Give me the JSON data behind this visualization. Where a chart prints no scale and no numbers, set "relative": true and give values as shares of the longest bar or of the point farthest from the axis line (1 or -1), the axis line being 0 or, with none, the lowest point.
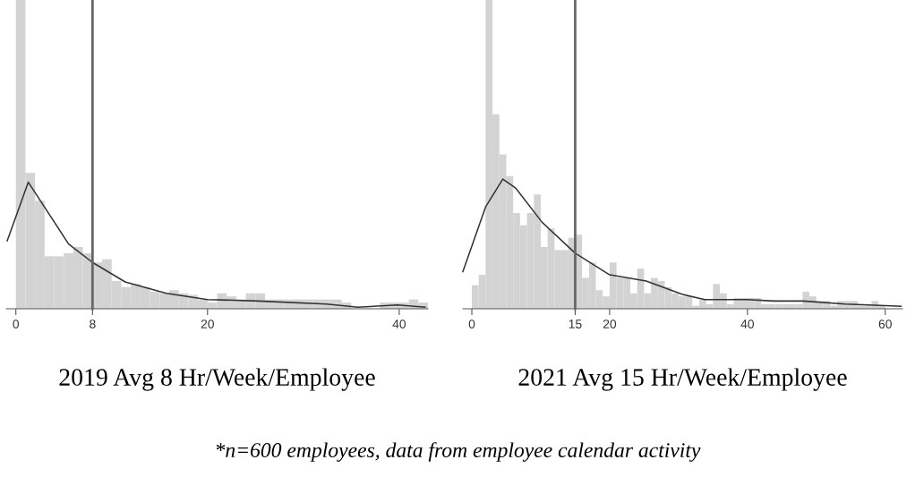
{
  "chart_data": [
    {
      "type": "histogram",
      "relative": true,
      "xlabel": "2019 Avg 8 Hr/Week/Employee",
      "color": "#d3d3d3",
      "bins": [
        0,
        1,
        2,
        3,
        4,
        5,
        6,
        7,
        8,
        9,
        10,
        11,
        12,
        13,
        14,
        15,
        16,
        17,
        18,
        19,
        20,
        21,
        22,
        23,
        24,
        25,
        26,
        27,
        28,
        29,
        30,
        31,
        32,
        33,
        34,
        35,
        36,
        37,
        38,
        39,
        40,
        41,
        42,
        43
      ],
      "values": [
        1,
        0.44,
        0.35,
        0.17,
        0.17,
        0.18,
        0.2,
        0.18,
        0.15,
        0.16,
        0.09,
        0.07,
        0.08,
        0.07,
        0.055,
        0.05,
        0.06,
        0.05,
        0.045,
        0.03,
        0.02,
        0.05,
        0.04,
        0.03,
        0.05,
        0.05,
        0.03,
        0.03,
        0.03,
        0.03,
        0.03,
        0.03,
        0.03,
        0.03,
        0.02,
        null,
        null,
        null,
        0.02,
        0.02,
        0.02,
        0.03,
        0.02
      ],
      "series": [
        {
          "type": "line",
          "color": "#333333",
          "x": [
            -0.9,
            1.3,
            5.5,
            8.0,
            11.4,
            15.7,
            20,
            25.3,
            32.4,
            35.7,
            39.8,
            42.7
          ],
          "values": [
            0.22,
            0.41,
            0.21,
            0.15,
            0.087,
            0.05,
            0.03,
            0.025,
            0.015,
            0.005,
            0.012,
            0.005
          ]
        }
      ],
      "xlim": [
        -1,
        43
      ],
      "xticks": [
        0,
        8,
        20,
        40
      ],
      "ref_lines": [
        {
          "axis": "x",
          "value": 8,
          "color": "#666666"
        }
      ],
      "annotations": [
        "*n=600 employees, data from employee calendar activity"
      ]
    },
    {
      "type": "histogram",
      "relative": true,
      "xlabel": "2021 Avg 15 Hr/Week/Employee",
      "color": "#d3d3d3",
      "bins": [
        0,
        1,
        2,
        3,
        4,
        5,
        6,
        7,
        8,
        9,
        10,
        11,
        12,
        13,
        14,
        15,
        16,
        17,
        18,
        19,
        20,
        21,
        22,
        23,
        24,
        25,
        26,
        27,
        28,
        29,
        30,
        31,
        32,
        33,
        34,
        35,
        36,
        37,
        38,
        39,
        40,
        41,
        42,
        43,
        44,
        45,
        46,
        47,
        48,
        49,
        50,
        51,
        52,
        53,
        54,
        55,
        56,
        57,
        58,
        59,
        60,
        61,
        62
      ],
      "values": [
        0.076,
        0.11,
        1,
        0.63,
        0.5,
        0.43,
        0.31,
        0.27,
        0.31,
        0.37,
        0.2,
        0.26,
        0.19,
        0.19,
        0.23,
        0.24,
        0.1,
        0.15,
        0.06,
        0.04,
        0.15,
        0.1,
        0.1,
        0.05,
        0.13,
        0.05,
        0.1,
        0.09,
        0.07,
        0.05,
        0.04,
        0.04,
        0.01,
        0.03,
        0.015,
        0.08,
        0.05,
        0.015,
        0.035,
        0.035,
        0.035,
        0.035,
        0.015,
        0.015,
        0.015,
        0.015,
        0.015,
        0.015,
        0.055,
        0.04,
        0.025,
        0.025,
        0.01,
        0.025,
        0.025,
        0.025,
        0.01,
        0.01,
        0.025,
        0.01,
        null,
        null
      ],
      "series": [
        {
          "type": "line",
          "color": "#333333",
          "x": [
            -1.3,
            2.0,
            4.5,
            6.4,
            10.2,
            15,
            20,
            25.3,
            30.5,
            33.8,
            40,
            43.8,
            48.1,
            54.2,
            60,
            62.3
          ],
          "values": [
            0.12,
            0.33,
            0.42,
            0.39,
            0.28,
            0.18,
            0.11,
            0.09,
            0.047,
            0.03,
            0.03,
            0.025,
            0.025,
            0.015,
            0.01,
            0.008
          ]
        }
      ],
      "xlim": [
        -1.3,
        62.5
      ],
      "xticks": [
        0,
        15,
        20,
        40,
        60
      ],
      "ref_lines": [
        {
          "axis": "x",
          "value": 15,
          "color": "#666666"
        }
      ]
    }
  ]
}
